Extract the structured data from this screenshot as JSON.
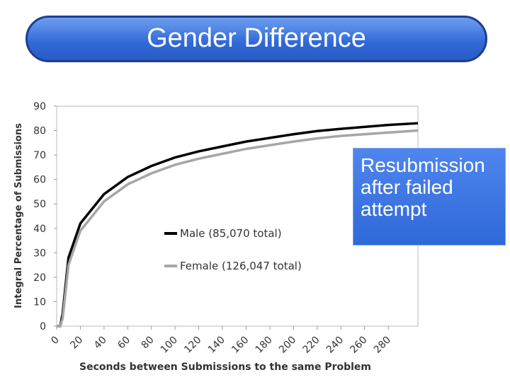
{
  "chart_data": {
    "type": "line",
    "title": "Gender Difference",
    "annotation": "Resubmission after failed attempt",
    "x_label": "Seconds between Submissions to the same Problem",
    "y_label": "Integral Percentage of Submissions",
    "x": [
      0,
      3,
      5,
      10,
      20,
      40,
      60,
      80,
      100,
      120,
      140,
      160,
      180,
      200,
      220,
      240,
      260,
      280,
      305
    ],
    "series": [
      {
        "name": "Male (85,070 total)",
        "color": "#000000",
        "values": [
          0,
          0,
          5,
          28,
          42,
          54,
          61,
          65.5,
          69,
          71.5,
          73.5,
          75.5,
          77,
          78.5,
          79.8,
          80.7,
          81.5,
          82.3,
          83
        ]
      },
      {
        "name": "Female (126,047 total)",
        "color": "#a6a6a6",
        "values": [
          0,
          0,
          3,
          25,
          39,
          51,
          58,
          62.5,
          66,
          68.5,
          70.5,
          72.5,
          74,
          75.5,
          76.8,
          77.8,
          78.5,
          79.2,
          80
        ]
      }
    ],
    "xlim": [
      0,
      305
    ],
    "ylim": [
      0,
      90
    ],
    "xticks": [
      0,
      20,
      40,
      60,
      80,
      100,
      120,
      140,
      160,
      180,
      200,
      220,
      240,
      260,
      280
    ],
    "yticks": [
      0,
      10,
      20,
      30,
      40,
      50,
      60,
      70,
      80,
      90
    ],
    "grid": false
  }
}
